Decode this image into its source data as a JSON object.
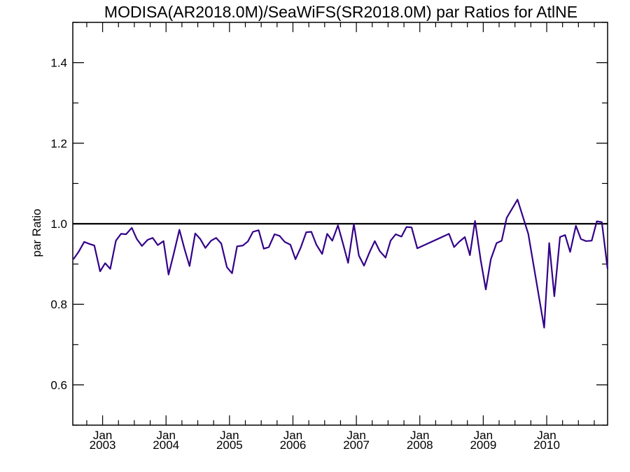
{
  "chart_data": {
    "type": "line",
    "title": "MODISA(AR2018.0M)/SeaWiFS(SR2018.0M)  par Ratios for AtlNE",
    "xlabel": "",
    "ylabel": "par Ratio",
    "ylim": [
      0.5,
      1.5
    ],
    "yticks": [
      0.6,
      0.8,
      1.0,
      1.2,
      1.4
    ],
    "ytick_labels": [
      "0.6",
      "0.8",
      "1.0",
      "1.2",
      "1.4"
    ],
    "xlim": [
      2002.53,
      2010.96
    ],
    "xticks": [
      {
        "x": 2003.0,
        "month": "Jan",
        "year": "2003"
      },
      {
        "x": 2004.0,
        "month": "Jan",
        "year": "2004"
      },
      {
        "x": 2005.0,
        "month": "Jan",
        "year": "2005"
      },
      {
        "x": 2006.0,
        "month": "Jan",
        "year": "2006"
      },
      {
        "x": 2007.0,
        "month": "Jan",
        "year": "2007"
      },
      {
        "x": 2008.0,
        "month": "Jan",
        "year": "2008"
      },
      {
        "x": 2009.0,
        "month": "Jan",
        "year": "2009"
      },
      {
        "x": 2010.0,
        "month": "Jan",
        "year": "2010"
      }
    ],
    "reference_line": 1.0,
    "grid": false,
    "series": [
      {
        "color": "#330088",
        "points": [
          [
            2002.54,
            0.912
          ],
          [
            2002.62,
            0.93
          ],
          [
            2002.71,
            0.955
          ],
          [
            2002.79,
            0.95
          ],
          [
            2002.87,
            0.946
          ],
          [
            2002.96,
            0.882
          ],
          [
            2003.04,
            0.902
          ],
          [
            2003.12,
            0.888
          ],
          [
            2003.21,
            0.958
          ],
          [
            2003.29,
            0.975
          ],
          [
            2003.37,
            0.974
          ],
          [
            2003.46,
            0.99
          ],
          [
            2003.54,
            0.962
          ],
          [
            2003.62,
            0.945
          ],
          [
            2003.71,
            0.96
          ],
          [
            2003.79,
            0.965
          ],
          [
            2003.87,
            0.947
          ],
          [
            2003.96,
            0.957
          ],
          [
            2004.04,
            0.874
          ],
          [
            2004.12,
            0.925
          ],
          [
            2004.21,
            0.985
          ],
          [
            2004.29,
            0.938
          ],
          [
            2004.37,
            0.895
          ],
          [
            2004.46,
            0.976
          ],
          [
            2004.54,
            0.962
          ],
          [
            2004.62,
            0.94
          ],
          [
            2004.71,
            0.958
          ],
          [
            2004.79,
            0.965
          ],
          [
            2004.87,
            0.951
          ],
          [
            2004.96,
            0.892
          ],
          [
            2005.04,
            0.877
          ],
          [
            2005.12,
            0.944
          ],
          [
            2005.21,
            0.946
          ],
          [
            2005.29,
            0.956
          ],
          [
            2005.37,
            0.98
          ],
          [
            2005.46,
            0.984
          ],
          [
            2005.54,
            0.938
          ],
          [
            2005.62,
            0.942
          ],
          [
            2005.71,
            0.974
          ],
          [
            2005.79,
            0.97
          ],
          [
            2005.87,
            0.955
          ],
          [
            2005.96,
            0.948
          ],
          [
            2006.04,
            0.912
          ],
          [
            2006.12,
            0.94
          ],
          [
            2006.21,
            0.979
          ],
          [
            2006.29,
            0.98
          ],
          [
            2006.37,
            0.948
          ],
          [
            2006.46,
            0.925
          ],
          [
            2006.54,
            0.975
          ],
          [
            2006.62,
            0.958
          ],
          [
            2006.71,
            0.996
          ],
          [
            2006.79,
            0.95
          ],
          [
            2006.87,
            0.903
          ],
          [
            2006.96,
            0.999
          ],
          [
            2007.04,
            0.921
          ],
          [
            2007.12,
            0.896
          ],
          [
            2007.21,
            0.93
          ],
          [
            2007.29,
            0.957
          ],
          [
            2007.37,
            0.932
          ],
          [
            2007.46,
            0.916
          ],
          [
            2007.54,
            0.958
          ],
          [
            2007.62,
            0.974
          ],
          [
            2007.71,
            0.968
          ],
          [
            2007.79,
            0.992
          ],
          [
            2007.87,
            0.991
          ],
          [
            2007.96,
            0.939
          ],
          [
            2008.46,
            0.975
          ],
          [
            2008.54,
            0.942
          ],
          [
            2008.62,
            0.955
          ],
          [
            2008.71,
            0.967
          ],
          [
            2008.79,
            0.922
          ],
          [
            2008.87,
            1.007
          ],
          [
            2008.96,
            0.91
          ],
          [
            2009.04,
            0.837
          ],
          [
            2009.12,
            0.912
          ],
          [
            2009.21,
            0.952
          ],
          [
            2009.29,
            0.958
          ],
          [
            2009.37,
            1.015
          ],
          [
            2009.54,
            1.06
          ],
          [
            2009.71,
            0.975
          ],
          [
            2009.96,
            0.742
          ],
          [
            2010.04,
            0.952
          ],
          [
            2010.12,
            0.82
          ],
          [
            2010.21,
            0.967
          ],
          [
            2010.29,
            0.972
          ],
          [
            2010.37,
            0.93
          ],
          [
            2010.46,
            0.995
          ],
          [
            2010.54,
            0.962
          ],
          [
            2010.62,
            0.957
          ],
          [
            2010.71,
            0.958
          ],
          [
            2010.79,
            1.006
          ],
          [
            2010.87,
            1.004
          ],
          [
            2010.96,
            0.888
          ]
        ]
      }
    ]
  }
}
